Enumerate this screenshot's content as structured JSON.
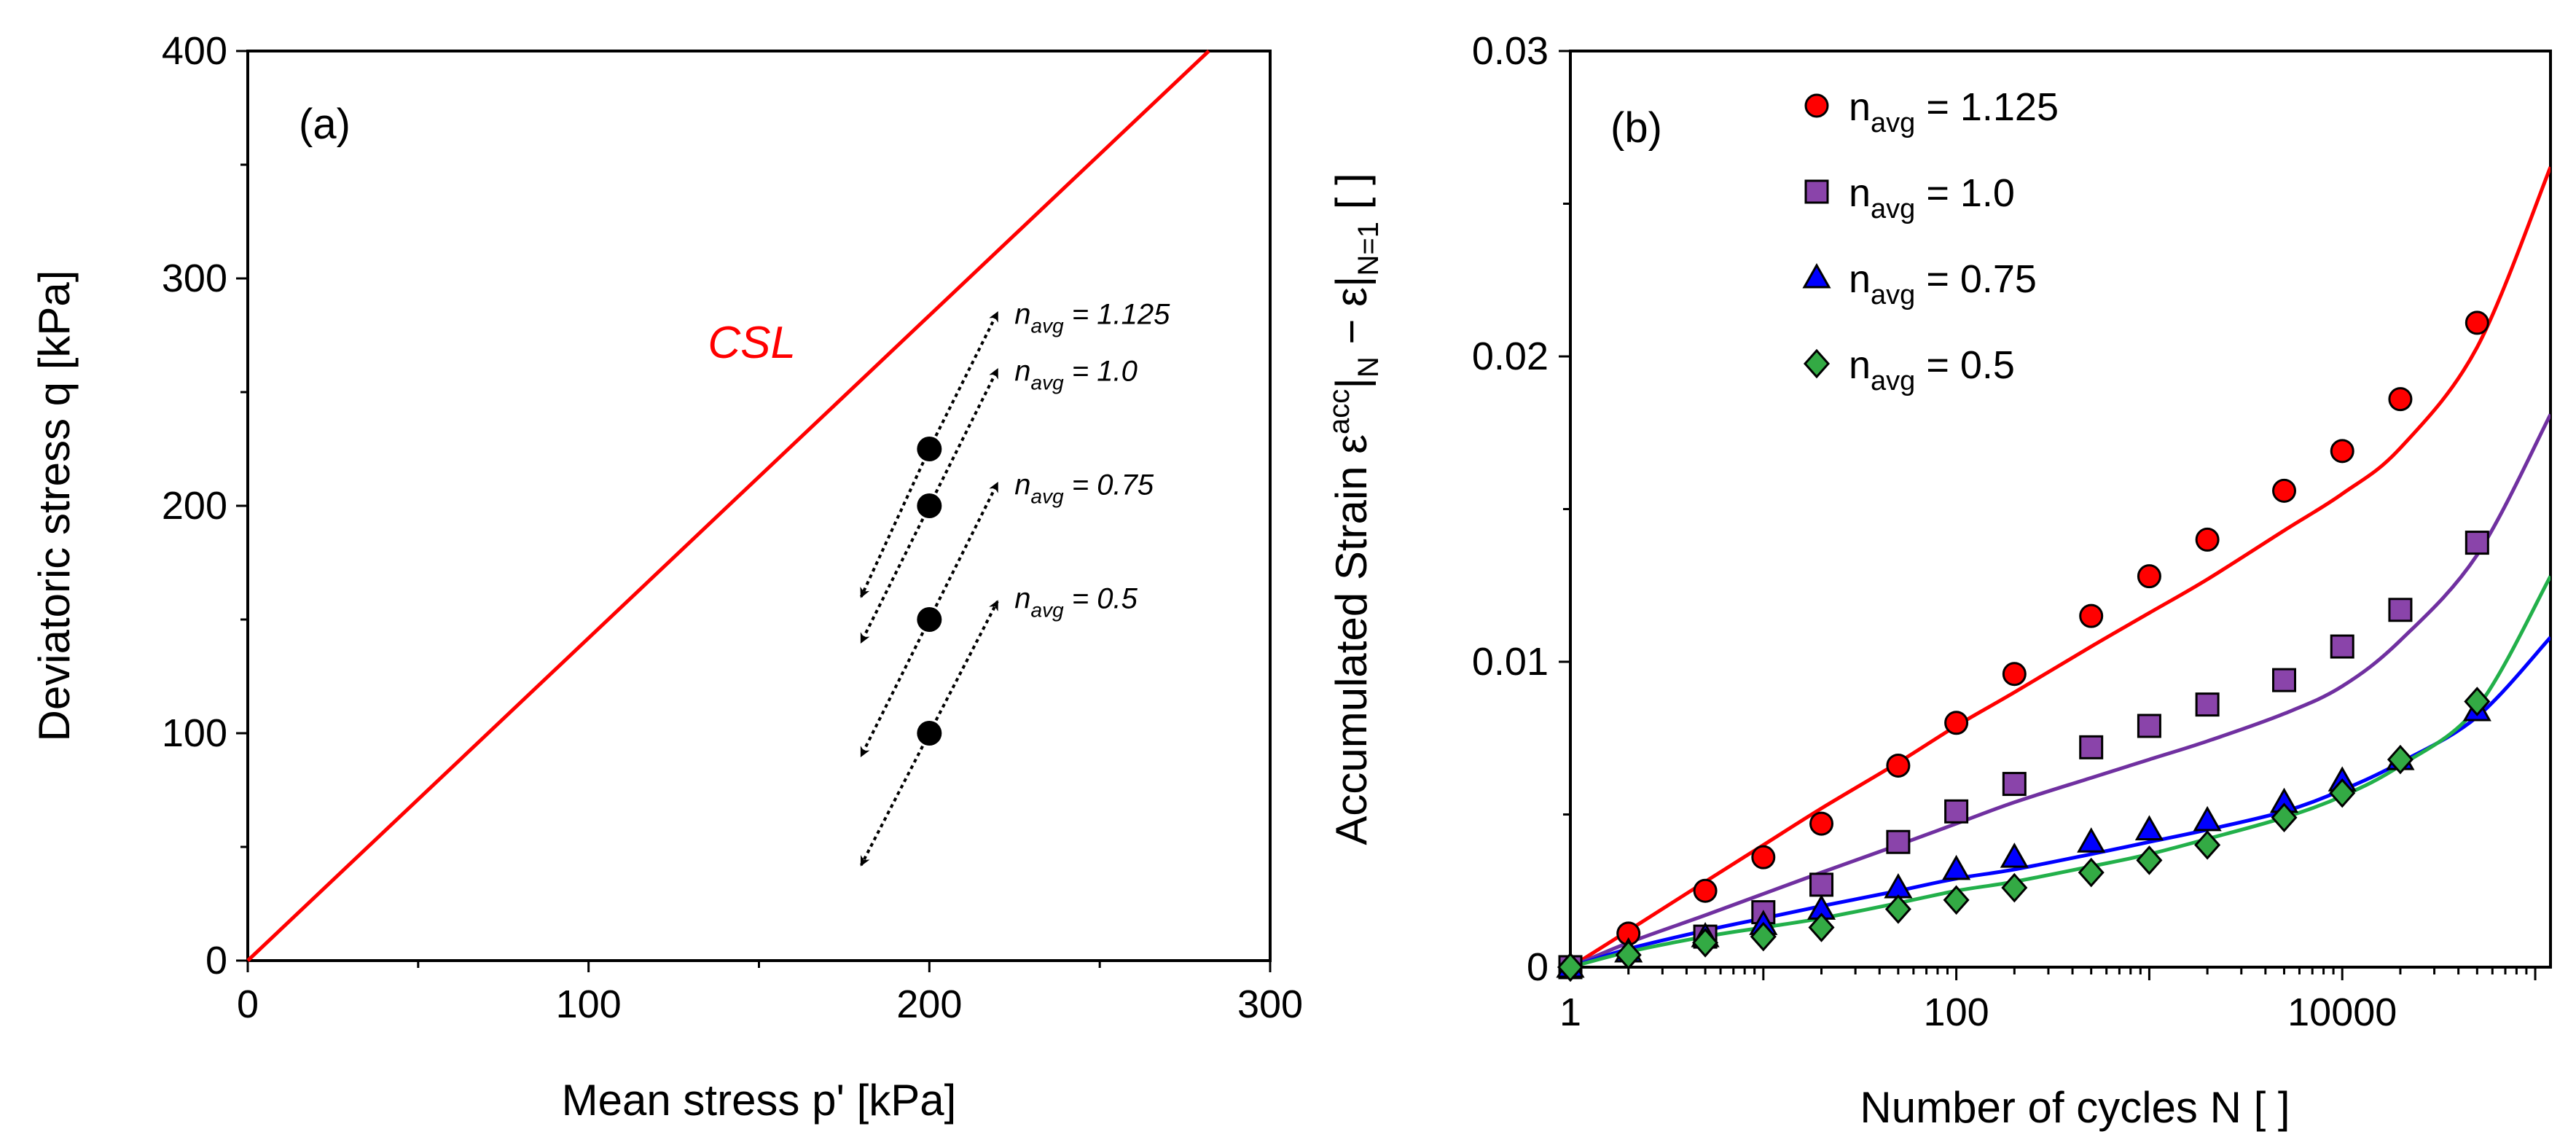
{
  "chart_data": [
    {
      "panel": "(a)",
      "type": "line",
      "xlabel": "Mean stress p' [kPa]",
      "ylabel": "Deviatoric stress q [kPa]",
      "xlim": [
        0,
        300
      ],
      "ylim": [
        0,
        400
      ],
      "xticks": [
        0,
        100,
        200,
        300
      ],
      "yticks": [
        0,
        100,
        200,
        300,
        400
      ],
      "xtick_labels": [
        "0",
        "100",
        "200",
        "300"
      ],
      "ytick_labels": [
        "0",
        "100",
        "200",
        "300",
        "400"
      ],
      "csl": {
        "label": "CSL",
        "color": "#ff0000",
        "x": [
          0,
          282
        ],
        "y": [
          0,
          400
        ]
      },
      "points": [
        {
          "p": 200,
          "q": 225,
          "n_label": "n",
          "sub": "avg",
          "rest": " = 1.125",
          "arrow_from": [
            180,
            160
          ],
          "arrow_to": [
            220,
            285
          ],
          "label_at": [
            225,
            280
          ]
        },
        {
          "p": 200,
          "q": 200,
          "n_label": "n",
          "sub": "avg",
          "rest": " = 1.0",
          "arrow_from": [
            180,
            140
          ],
          "arrow_to": [
            220,
            260
          ],
          "label_at": [
            225,
            255
          ]
        },
        {
          "p": 200,
          "q": 150,
          "n_label": "n",
          "sub": "avg",
          "rest": " = 0.75",
          "arrow_from": [
            180,
            90
          ],
          "arrow_to": [
            220,
            210
          ],
          "label_at": [
            225,
            205
          ]
        },
        {
          "p": 200,
          "q": 100,
          "n_label": "n",
          "sub": "avg",
          "rest": " = 0.5",
          "arrow_from": [
            180,
            42
          ],
          "arrow_to": [
            220,
            158
          ],
          "label_at": [
            225,
            155
          ]
        }
      ]
    },
    {
      "panel": "(b)",
      "type": "scatter",
      "x_scale": "log",
      "xlabel": "Number of cycles N [ ]",
      "ylabel_parts": {
        "main": "Accumulated Strain ε",
        "sup": "acc",
        "mid1": "|",
        "sub1": "N",
        "mid2": " − ε|",
        "sub2": "N=1",
        "end": " [ ]"
      },
      "xlim": [
        1,
        120000
      ],
      "ylim": [
        0,
        0.03
      ],
      "xticks": [
        1,
        100,
        10000
      ],
      "xtick_labels": [
        "1",
        "100",
        "10000"
      ],
      "yticks": [
        0,
        0.01,
        0.02,
        0.03
      ],
      "ytick_labels": [
        "0",
        "0.01",
        "0.02",
        "0.03"
      ],
      "series": [
        {
          "name_n": "n",
          "name_sub": "avg",
          "name_rest": " = 1.125",
          "marker": "circle",
          "color": "#ff0000",
          "line_color": "#ff0000",
          "x": [
            1,
            2,
            5,
            10,
            20,
            50,
            100,
            200,
            500,
            1000,
            2000,
            5000,
            10000,
            20000,
            50000
          ],
          "y": [
            0.0,
            0.0011,
            0.0025,
            0.0036,
            0.0047,
            0.0066,
            0.008,
            0.0096,
            0.0115,
            0.0128,
            0.014,
            0.0156,
            0.0169,
            0.0186,
            0.0211
          ],
          "fit_x": [
            1,
            2,
            5,
            10,
            20,
            50,
            100,
            200,
            500,
            1000,
            2000,
            5000,
            10000,
            20000,
            50000,
            120000
          ],
          "fit_y": [
            0.0,
            0.0012,
            0.0028,
            0.004,
            0.0052,
            0.0067,
            0.0079,
            0.009,
            0.0105,
            0.0116,
            0.0127,
            0.0143,
            0.0155,
            0.017,
            0.0203,
            0.0262
          ]
        },
        {
          "name_n": "n",
          "name_sub": "avg",
          "name_rest": " = 1.0",
          "marker": "square",
          "color": "#8a44aa",
          "line_color": "#7030a0",
          "x": [
            1,
            5,
            10,
            20,
            50,
            100,
            200,
            500,
            1000,
            2000,
            5000,
            10000,
            20000,
            50000
          ],
          "y": [
            0.0,
            0.001,
            0.0018,
            0.0027,
            0.0041,
            0.0051,
            0.006,
            0.0072,
            0.0079,
            0.0086,
            0.0094,
            0.0105,
            0.0117,
            0.0139
          ],
          "fit_x": [
            1,
            2,
            5,
            10,
            20,
            50,
            100,
            200,
            500,
            1000,
            2000,
            5000,
            10000,
            20000,
            50000,
            120000
          ],
          "fit_y": [
            0.0,
            0.0008,
            0.0017,
            0.0024,
            0.0031,
            0.004,
            0.0047,
            0.0054,
            0.0062,
            0.0068,
            0.0074,
            0.0083,
            0.0092,
            0.0107,
            0.0135,
            0.0181
          ]
        },
        {
          "name_n": "n",
          "name_sub": "avg",
          "name_rest": " = 0.75",
          "marker": "triangle",
          "color": "#0000ff",
          "line_color": "#0000ff",
          "x": [
            1,
            2,
            5,
            10,
            20,
            50,
            100,
            200,
            500,
            1000,
            2000,
            5000,
            10000,
            20000,
            50000
          ],
          "y": [
            0.0,
            0.0005,
            0.001,
            0.0014,
            0.0019,
            0.0026,
            0.0032,
            0.0036,
            0.0041,
            0.0045,
            0.0048,
            0.0054,
            0.0061,
            0.0068,
            0.0084
          ],
          "fit_x": [
            1,
            2,
            5,
            10,
            20,
            50,
            100,
            200,
            500,
            1000,
            2000,
            5000,
            10000,
            20000,
            50000,
            120000
          ],
          "fit_y": [
            0.0,
            0.0006,
            0.0012,
            0.0016,
            0.002,
            0.0025,
            0.0029,
            0.0032,
            0.0037,
            0.0041,
            0.0045,
            0.0051,
            0.0058,
            0.0067,
            0.0082,
            0.0108
          ]
        },
        {
          "name_n": "n",
          "name_sub": "avg",
          "name_rest": " = 0.5",
          "marker": "diamond",
          "color": "#33aa44",
          "line_color": "#22b04a",
          "x": [
            1,
            2,
            5,
            10,
            20,
            50,
            100,
            200,
            500,
            1000,
            2000,
            5000,
            10000,
            20000,
            50000
          ],
          "y": [
            0.0,
            0.0004,
            0.0008,
            0.001,
            0.0013,
            0.0019,
            0.0022,
            0.0026,
            0.0031,
            0.0035,
            0.004,
            0.0049,
            0.0057,
            0.0068,
            0.0087
          ],
          "fit_x": [
            1,
            2,
            5,
            10,
            20,
            50,
            100,
            200,
            500,
            1000,
            2000,
            5000,
            10000,
            20000,
            50000,
            120000
          ],
          "fit_y": [
            0.0,
            0.0005,
            0.001,
            0.0013,
            0.0016,
            0.0021,
            0.0025,
            0.0028,
            0.0033,
            0.0037,
            0.0042,
            0.0049,
            0.0056,
            0.0066,
            0.0085,
            0.0128
          ]
        }
      ]
    }
  ]
}
